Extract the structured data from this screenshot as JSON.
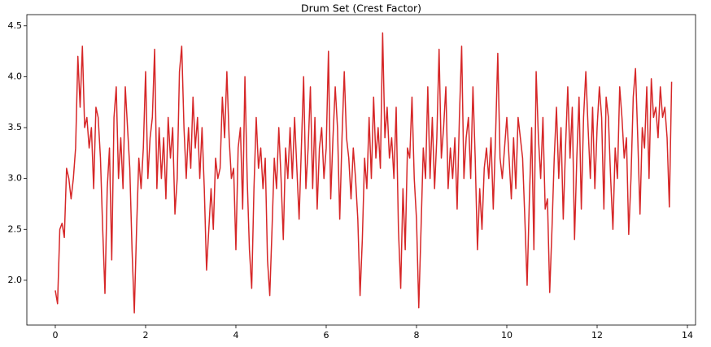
{
  "chart_data": {
    "type": "line",
    "title": "Drum Set (Crest Factor)",
    "color": "#d62728",
    "xlim": [
      -0.63,
      14.18
    ],
    "ylim": [
      1.56,
      4.61
    ],
    "xticks": [
      0,
      2,
      4,
      6,
      8,
      10,
      12,
      14
    ],
    "yticks": [
      {
        "value": 2,
        "label": "2.0"
      },
      2.5,
      {
        "value": 3,
        "label": "3.0"
      },
      3.5,
      {
        "value": 4,
        "label": "4.0"
      },
      4.5
    ],
    "x": [
      0,
      0.05,
      0.1,
      0.15,
      0.2,
      0.25,
      0.3,
      0.35,
      0.4,
      0.45,
      0.5,
      0.55,
      0.6,
      0.65,
      0.7,
      0.75,
      0.8,
      0.85,
      0.9,
      0.95,
      1,
      1.05,
      1.1,
      1.15,
      1.2,
      1.25,
      1.3,
      1.35,
      1.4,
      1.45,
      1.5,
      1.55,
      1.6,
      1.65,
      1.7,
      1.75,
      1.8,
      1.85,
      1.9,
      1.95,
      2,
      2.05,
      2.1,
      2.15,
      2.2,
      2.25,
      2.3,
      2.35,
      2.4,
      2.45,
      2.5,
      2.55,
      2.6,
      2.65,
      2.7,
      2.75,
      2.8,
      2.85,
      2.9,
      2.95,
      3,
      3.05,
      3.1,
      3.15,
      3.2,
      3.25,
      3.3,
      3.35,
      3.4,
      3.45,
      3.5,
      3.55,
      3.6,
      3.65,
      3.7,
      3.75,
      3.8,
      3.85,
      3.9,
      3.95,
      4,
      4.05,
      4.1,
      4.15,
      4.2,
      4.25,
      4.3,
      4.35,
      4.4,
      4.45,
      4.5,
      4.55,
      4.6,
      4.65,
      4.7,
      4.75,
      4.8,
      4.85,
      4.9,
      4.95,
      5,
      5.05,
      5.1,
      5.15,
      5.2,
      5.25,
      5.3,
      5.35,
      5.4,
      5.45,
      5.5,
      5.55,
      5.6,
      5.65,
      5.7,
      5.75,
      5.8,
      5.85,
      5.9,
      5.95,
      6,
      6.05,
      6.1,
      6.15,
      6.2,
      6.25,
      6.3,
      6.35,
      6.4,
      6.45,
      6.5,
      6.55,
      6.6,
      6.65,
      6.7,
      6.75,
      6.8,
      6.85,
      6.9,
      6.95,
      7,
      7.05,
      7.1,
      7.15,
      7.2,
      7.25,
      7.3,
      7.35,
      7.4,
      7.45,
      7.5,
      7.55,
      7.6,
      7.65,
      7.7,
      7.75,
      7.8,
      7.85,
      7.9,
      7.95,
      8,
      8.05,
      8.1,
      8.15,
      8.2,
      8.25,
      8.3,
      8.35,
      8.4,
      8.45,
      8.5,
      8.55,
      8.6,
      8.65,
      8.7,
      8.75,
      8.8,
      8.85,
      8.9,
      8.95,
      9,
      9.05,
      9.1,
      9.15,
      9.2,
      9.25,
      9.3,
      9.35,
      9.4,
      9.45,
      9.5,
      9.55,
      9.6,
      9.65,
      9.7,
      9.75,
      9.8,
      9.85,
      9.9,
      9.95,
      10,
      10.05,
      10.1,
      10.15,
      10.2,
      10.25,
      10.3,
      10.35,
      10.4,
      10.45,
      10.5,
      10.55,
      10.6,
      10.65,
      10.7,
      10.75,
      10.8,
      10.85,
      10.9,
      10.95,
      11,
      11.05,
      11.1,
      11.15,
      11.2,
      11.25,
      11.3,
      11.35,
      11.4,
      11.45,
      11.5,
      11.55,
      11.6,
      11.65,
      11.7,
      11.75,
      11.8,
      11.85,
      11.9,
      11.95,
      12,
      12.05,
      12.1,
      12.15,
      12.2,
      12.25,
      12.3,
      12.35,
      12.4,
      12.45,
      12.5,
      12.55,
      12.6,
      12.65,
      12.7,
      12.75,
      12.8,
      12.85,
      12.9,
      12.95,
      13,
      13.05,
      13.1,
      13.15,
      13.2,
      13.25,
      13.3,
      13.35,
      13.4,
      13.45,
      13.5,
      13.55,
      13.6,
      13.65
    ],
    "values": [
      1.9,
      1.77,
      2.5,
      2.56,
      2.42,
      3.1,
      3.0,
      2.8,
      3.0,
      3.3,
      4.2,
      3.7,
      4.3,
      3.5,
      3.6,
      3.3,
      3.5,
      2.9,
      3.7,
      3.6,
      3.2,
      2.5,
      1.87,
      2.9,
      3.3,
      2.2,
      3.6,
      3.9,
      3.0,
      3.4,
      2.9,
      3.9,
      3.5,
      3.1,
      2.3,
      1.68,
      2.5,
      3.2,
      2.9,
      3.3,
      4.05,
      3.0,
      3.4,
      3.6,
      4.27,
      2.9,
      3.5,
      3.0,
      3.4,
      2.8,
      3.6,
      3.2,
      3.5,
      2.65,
      3.0,
      4.05,
      4.3,
      3.5,
      3.0,
      3.5,
      3.1,
      3.8,
      3.3,
      3.6,
      3.0,
      3.5,
      2.9,
      2.1,
      2.5,
      2.9,
      2.5,
      3.2,
      3.0,
      3.1,
      3.8,
      3.4,
      4.05,
      3.4,
      3.0,
      3.1,
      2.3,
      3.3,
      3.5,
      2.7,
      4.0,
      3.0,
      2.3,
      1.92,
      2.9,
      3.6,
      3.1,
      3.3,
      2.9,
      3.2,
      2.2,
      1.85,
      2.5,
      3.2,
      2.9,
      3.5,
      3.0,
      2.4,
      3.3,
      3.0,
      3.5,
      3.0,
      3.6,
      3.1,
      2.6,
      3.3,
      4.0,
      2.9,
      3.3,
      3.9,
      2.9,
      3.6,
      2.7,
      3.3,
      3.5,
      3.0,
      3.3,
      4.25,
      2.8,
      3.4,
      3.9,
      3.5,
      2.6,
      3.4,
      4.05,
      3.4,
      3.2,
      2.8,
      3.3,
      3.0,
      2.6,
      1.85,
      2.4,
      3.2,
      2.9,
      3.6,
      3.0,
      3.8,
      3.2,
      3.5,
      3.1,
      4.43,
      3.4,
      3.7,
      3.2,
      3.4,
      3.0,
      3.7,
      2.5,
      1.92,
      2.9,
      2.3,
      3.3,
      3.2,
      3.8,
      3.0,
      2.6,
      1.73,
      2.5,
      3.3,
      3.0,
      3.9,
      3.0,
      3.6,
      2.9,
      3.4,
      4.27,
      3.2,
      3.5,
      3.9,
      2.9,
      3.3,
      3.0,
      3.4,
      2.7,
      3.6,
      4.3,
      3.0,
      3.4,
      3.6,
      3.0,
      3.9,
      3.2,
      2.3,
      2.9,
      2.5,
      3.1,
      3.3,
      3.0,
      3.4,
      2.7,
      3.4,
      4.23,
      3.2,
      3.0,
      3.3,
      3.6,
      3.2,
      2.8,
      3.4,
      2.9,
      3.6,
      3.4,
      3.2,
      2.6,
      1.95,
      2.8,
      3.5,
      2.3,
      4.05,
      3.4,
      3.0,
      3.6,
      2.7,
      2.8,
      1.88,
      2.5,
      3.2,
      3.7,
      3.0,
      3.5,
      2.6,
      3.3,
      3.9,
      3.2,
      3.7,
      2.4,
      3.2,
      3.8,
      2.7,
      3.6,
      4.05,
      3.5,
      3.0,
      3.7,
      2.9,
      3.5,
      3.9,
      3.6,
      2.7,
      3.8,
      3.6,
      3.0,
      2.5,
      3.3,
      3.0,
      3.9,
      3.6,
      3.2,
      3.4,
      2.45,
      3.0,
      3.8,
      4.08,
      3.4,
      2.65,
      3.5,
      3.3,
      3.9,
      3.0,
      3.98,
      3.6,
      3.7,
      3.4,
      3.9,
      3.6,
      3.7,
      3.4,
      2.72,
      3.95
    ]
  }
}
